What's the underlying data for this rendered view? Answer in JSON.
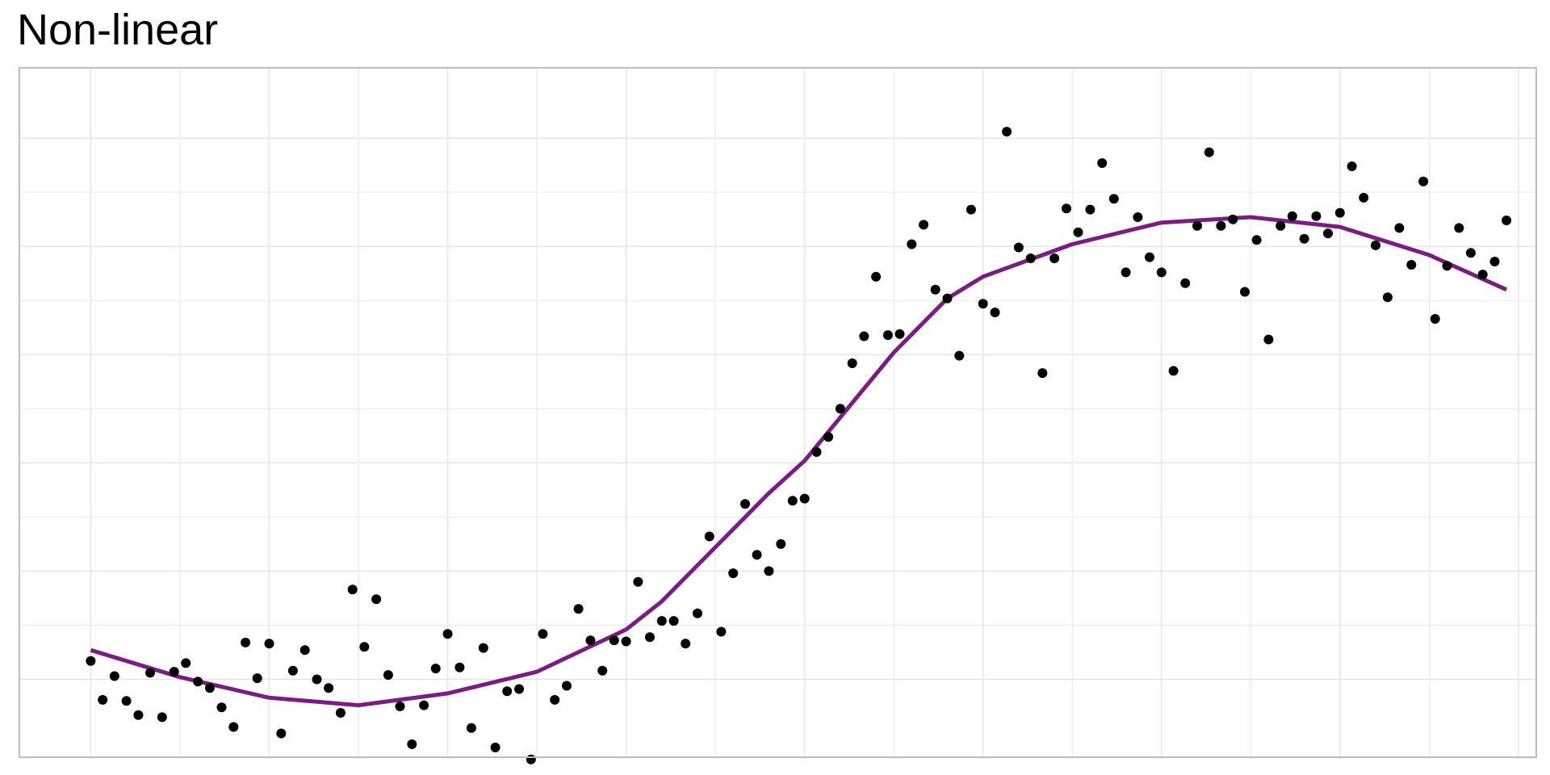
{
  "chart_data": {
    "type": "scatter",
    "title": "Non-linear",
    "xlim": [
      -0.4,
      8.1
    ],
    "ylim": [
      -0.72,
      5.65
    ],
    "x_gridlines": [
      0,
      1,
      2,
      3,
      4,
      5,
      6,
      7,
      8
    ],
    "y_gridlines": [
      0,
      1,
      2,
      3,
      4,
      5
    ],
    "grid": true,
    "axis_labels_shown": false,
    "colors": {
      "points": "#000000",
      "trend_line": "#7B1C82",
      "grid": "#E6E6E6",
      "panel_border": "#BDBDBD"
    },
    "series": [
      {
        "type": "scatter",
        "points": [
          [
            0.0,
            0.17
          ],
          [
            0.067,
            -0.19
          ],
          [
            0.133,
            0.03
          ],
          [
            0.2,
            -0.2
          ],
          [
            0.267,
            -0.33
          ],
          [
            0.333,
            0.06
          ],
          [
            0.4,
            -0.35
          ],
          [
            0.467,
            0.07
          ],
          [
            0.533,
            0.15
          ],
          [
            0.6,
            -0.02
          ],
          [
            0.667,
            -0.08
          ],
          [
            0.733,
            -0.26
          ],
          [
            0.8,
            -0.44
          ],
          [
            0.867,
            0.34
          ],
          [
            0.933,
            0.01
          ],
          [
            1.0,
            0.33
          ],
          [
            1.067,
            -0.5
          ],
          [
            1.133,
            0.08
          ],
          [
            1.2,
            0.27
          ],
          [
            1.267,
            0.0
          ],
          [
            1.333,
            -0.08
          ],
          [
            1.4,
            -0.31
          ],
          [
            1.467,
            0.83
          ],
          [
            1.533,
            0.3
          ],
          [
            1.6,
            0.74
          ],
          [
            1.667,
            0.04
          ],
          [
            1.733,
            -0.25
          ],
          [
            1.8,
            -0.6
          ],
          [
            1.867,
            -0.24
          ],
          [
            1.933,
            0.1
          ],
          [
            2.0,
            0.42
          ],
          [
            2.067,
            0.11
          ],
          [
            2.133,
            -0.45
          ],
          [
            2.2,
            0.29
          ],
          [
            2.267,
            -0.63
          ],
          [
            2.333,
            -0.11
          ],
          [
            2.4,
            -0.09
          ],
          [
            2.467,
            -0.74
          ],
          [
            2.533,
            0.42
          ],
          [
            2.6,
            -0.19
          ],
          [
            2.667,
            -0.06
          ],
          [
            2.733,
            0.65
          ],
          [
            2.8,
            0.36
          ],
          [
            2.867,
            0.08
          ],
          [
            2.933,
            0.36
          ],
          [
            3.0,
            0.35
          ],
          [
            3.067,
            0.9
          ],
          [
            3.133,
            0.39
          ],
          [
            3.2,
            0.54
          ],
          [
            3.267,
            0.54
          ],
          [
            3.333,
            0.33
          ],
          [
            3.4,
            0.61
          ],
          [
            3.467,
            1.32
          ],
          [
            3.533,
            0.44
          ],
          [
            3.6,
            0.98
          ],
          [
            3.667,
            1.62
          ],
          [
            3.733,
            1.15
          ],
          [
            3.8,
            1.0
          ],
          [
            3.867,
            1.25
          ],
          [
            3.933,
            1.65
          ],
          [
            4.0,
            1.67
          ],
          [
            4.067,
            2.1
          ],
          [
            4.133,
            2.24
          ],
          [
            4.2,
            2.5
          ],
          [
            4.267,
            2.92
          ],
          [
            4.333,
            3.17
          ],
          [
            4.4,
            3.72
          ],
          [
            4.467,
            3.18
          ],
          [
            4.533,
            3.19
          ],
          [
            4.6,
            4.02
          ],
          [
            4.667,
            4.2
          ],
          [
            4.733,
            3.6
          ],
          [
            4.8,
            3.52
          ],
          [
            4.867,
            2.99
          ],
          [
            4.933,
            4.34
          ],
          [
            5.0,
            3.47
          ],
          [
            5.067,
            3.39
          ],
          [
            5.133,
            5.06
          ],
          [
            5.2,
            3.99
          ],
          [
            5.267,
            3.89
          ],
          [
            5.333,
            2.83
          ],
          [
            5.4,
            3.89
          ],
          [
            5.467,
            4.35
          ],
          [
            5.533,
            4.13
          ],
          [
            5.6,
            4.34
          ],
          [
            5.667,
            4.77
          ],
          [
            5.733,
            4.44
          ],
          [
            5.8,
            3.76
          ],
          [
            5.867,
            4.27
          ],
          [
            5.933,
            3.9
          ],
          [
            6.0,
            3.76
          ],
          [
            6.067,
            2.85
          ],
          [
            6.133,
            3.66
          ],
          [
            6.2,
            4.19
          ],
          [
            6.267,
            4.87
          ],
          [
            6.333,
            4.19
          ],
          [
            6.4,
            4.25
          ],
          [
            6.467,
            3.58
          ],
          [
            6.533,
            4.06
          ],
          [
            6.6,
            3.14
          ],
          [
            6.667,
            4.19
          ],
          [
            6.733,
            4.28
          ],
          [
            6.8,
            4.07
          ],
          [
            6.867,
            4.28
          ],
          [
            6.933,
            4.12
          ],
          [
            7.0,
            4.31
          ],
          [
            7.067,
            4.74
          ],
          [
            7.133,
            4.45
          ],
          [
            7.2,
            4.01
          ],
          [
            7.267,
            3.53
          ],
          [
            7.333,
            4.17
          ],
          [
            7.4,
            3.83
          ],
          [
            7.467,
            4.6
          ],
          [
            7.533,
            3.33
          ],
          [
            7.6,
            3.82
          ],
          [
            7.667,
            4.17
          ],
          [
            7.733,
            3.94
          ],
          [
            7.8,
            3.74
          ],
          [
            7.867,
            3.86
          ],
          [
            7.933,
            4.24
          ]
        ]
      },
      {
        "type": "line",
        "points": [
          [
            0.0,
            0.27
          ],
          [
            0.5,
            0.02
          ],
          [
            1.0,
            -0.17
          ],
          [
            1.5,
            -0.24
          ],
          [
            2.0,
            -0.13
          ],
          [
            2.5,
            0.07
          ],
          [
            3.0,
            0.46
          ],
          [
            3.2,
            0.72
          ],
          [
            3.5,
            1.22
          ],
          [
            3.8,
            1.72
          ],
          [
            4.0,
            2.02
          ],
          [
            4.2,
            2.42
          ],
          [
            4.5,
            3.02
          ],
          [
            4.8,
            3.52
          ],
          [
            5.0,
            3.72
          ],
          [
            5.5,
            4.02
          ],
          [
            6.0,
            4.22
          ],
          [
            6.5,
            4.27
          ],
          [
            7.0,
            4.18
          ],
          [
            7.5,
            3.92
          ],
          [
            7.933,
            3.6
          ]
        ]
      }
    ]
  }
}
